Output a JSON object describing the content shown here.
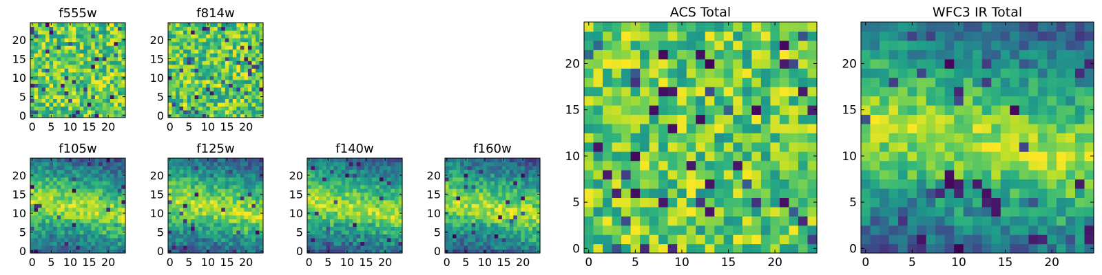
{
  "chart_data": [
    {
      "type": "heatmap",
      "title": "f555w",
      "xlabel": "",
      "ylabel": "",
      "xlim": [
        -0.5,
        24.5
      ],
      "ylim": [
        -0.5,
        24.5
      ],
      "x_ticks": [
        0,
        5,
        10,
        15,
        20
      ],
      "y_ticks": [
        0,
        5,
        10,
        15,
        20
      ],
      "grid_shape": [
        25,
        25
      ],
      "colormap": "viridis",
      "pattern": "uniform-noise",
      "seed": 11
    },
    {
      "type": "heatmap",
      "title": "f814w",
      "xlabel": "",
      "ylabel": "",
      "xlim": [
        -0.5,
        24.5
      ],
      "ylim": [
        -0.5,
        24.5
      ],
      "x_ticks": [
        0,
        5,
        10,
        15,
        20
      ],
      "y_ticks": [
        0,
        5,
        10,
        15,
        20
      ],
      "grid_shape": [
        25,
        25
      ],
      "colormap": "viridis",
      "pattern": "uniform-noise",
      "seed": 23
    },
    {
      "type": "heatmap",
      "title": "f105w",
      "xlabel": "",
      "ylabel": "",
      "xlim": [
        -0.5,
        24.5
      ],
      "ylim": [
        -0.5,
        24.5
      ],
      "x_ticks": [
        0,
        5,
        10,
        15,
        20
      ],
      "y_ticks": [
        0,
        5,
        10,
        15,
        20
      ],
      "grid_shape": [
        25,
        25
      ],
      "colormap": "viridis",
      "pattern": "diagonal-band",
      "seed": 37
    },
    {
      "type": "heatmap",
      "title": "f125w",
      "xlabel": "",
      "ylabel": "",
      "xlim": [
        -0.5,
        24.5
      ],
      "ylim": [
        -0.5,
        24.5
      ],
      "x_ticks": [
        0,
        5,
        10,
        15,
        20
      ],
      "y_ticks": [
        0,
        5,
        10,
        15,
        20
      ],
      "grid_shape": [
        25,
        25
      ],
      "colormap": "viridis",
      "pattern": "diagonal-band",
      "seed": 41
    },
    {
      "type": "heatmap",
      "title": "f140w",
      "xlabel": "",
      "ylabel": "",
      "xlim": [
        -0.5,
        24.5
      ],
      "ylim": [
        -0.5,
        24.5
      ],
      "x_ticks": [
        0,
        5,
        10,
        15,
        20
      ],
      "y_ticks": [
        0,
        5,
        10,
        15,
        20
      ],
      "grid_shape": [
        25,
        25
      ],
      "colormap": "viridis",
      "pattern": "diagonal-band",
      "seed": 53
    },
    {
      "type": "heatmap",
      "title": "f160w",
      "xlabel": "",
      "ylabel": "",
      "xlim": [
        -0.5,
        24.5
      ],
      "ylim": [
        -0.5,
        24.5
      ],
      "x_ticks": [
        0,
        5,
        10,
        15,
        20
      ],
      "y_ticks": [
        0,
        5,
        10,
        15,
        20
      ],
      "grid_shape": [
        25,
        25
      ],
      "colormap": "viridis",
      "pattern": "diagonal-band",
      "seed": 67
    },
    {
      "type": "heatmap",
      "title": "ACS Total",
      "xlabel": "",
      "ylabel": "",
      "xlim": [
        -0.5,
        24.5
      ],
      "ylim": [
        -0.5,
        24.5
      ],
      "x_ticks": [
        0,
        5,
        10,
        15,
        20
      ],
      "y_ticks": [
        0,
        5,
        10,
        15,
        20
      ],
      "grid_shape": [
        25,
        25
      ],
      "colormap": "viridis",
      "pattern": "uniform-noise",
      "seed": 79,
      "dark_pixels": [
        [
          8,
          21
        ],
        [
          21,
          22
        ],
        [
          21,
          20
        ],
        [
          18,
          15
        ],
        [
          12,
          14
        ],
        [
          9,
          13
        ],
        [
          1,
          11
        ],
        [
          5,
          10
        ],
        [
          16,
          9
        ],
        [
          2,
          8
        ],
        [
          8,
          5
        ],
        [
          13,
          4
        ],
        [
          3,
          6
        ],
        [
          9,
          17
        ],
        [
          8,
          17
        ]
      ]
    },
    {
      "type": "heatmap",
      "title": "WFC3 IR Total",
      "xlabel": "",
      "ylabel": "",
      "xlim": [
        -0.5,
        24.5
      ],
      "ylim": [
        -0.5,
        24.5
      ],
      "x_ticks": [
        0,
        5,
        10,
        15,
        20
      ],
      "y_ticks": [
        0,
        5,
        10,
        15,
        20
      ],
      "grid_shape": [
        25,
        25
      ],
      "colormap": "viridis",
      "pattern": "diagonal-band",
      "seed": 97,
      "dark_pixels": [
        [
          9,
          8
        ],
        [
          9,
          7
        ],
        [
          10,
          7
        ],
        [
          12,
          7
        ],
        [
          13,
          6
        ],
        [
          13,
          5
        ],
        [
          14,
          5
        ],
        [
          14,
          4
        ],
        [
          18,
          1
        ],
        [
          19,
          1
        ],
        [
          24,
          1
        ],
        [
          24,
          2
        ],
        [
          10,
          6
        ]
      ]
    }
  ]
}
